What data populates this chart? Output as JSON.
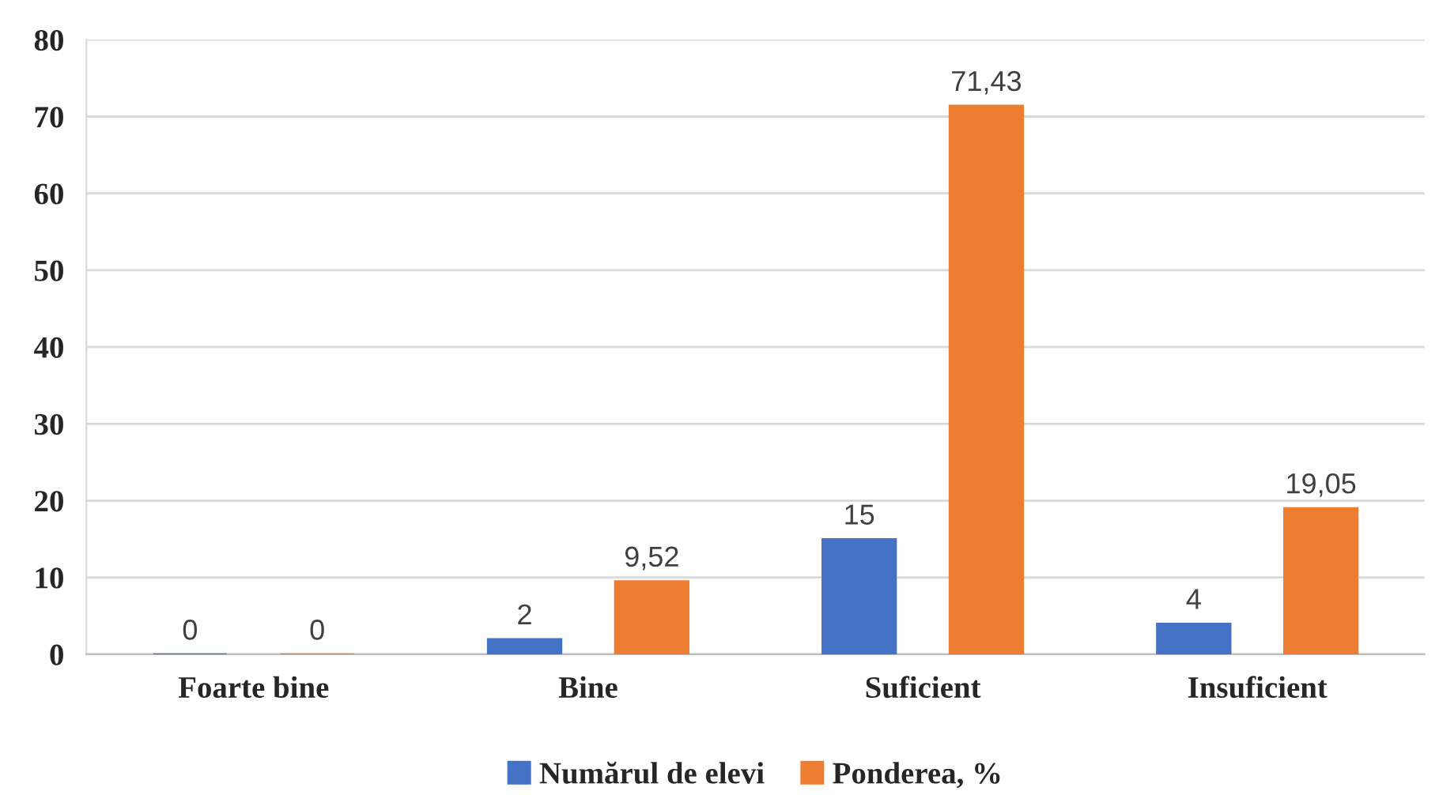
{
  "chart_data": {
    "type": "bar",
    "categories": [
      "Foarte bine",
      "Bine",
      "Suficient",
      "Insuficient"
    ],
    "series": [
      {
        "name": "Numărul de elevi",
        "color": "#4472c4",
        "values": [
          0,
          2,
          15,
          4
        ],
        "value_labels": [
          "0",
          "2",
          "15",
          "4"
        ]
      },
      {
        "name": "Ponderea, %",
        "color": "#ed7d31",
        "values": [
          0,
          9.52,
          71.43,
          19.05
        ],
        "value_labels": [
          "0",
          "9,52",
          "71,43",
          "19,05"
        ]
      }
    ],
    "ylim": [
      0,
      80
    ],
    "yticks": [
      0,
      10,
      20,
      30,
      40,
      50,
      60,
      70,
      80
    ],
    "grid": "y",
    "legend": "bottom"
  }
}
